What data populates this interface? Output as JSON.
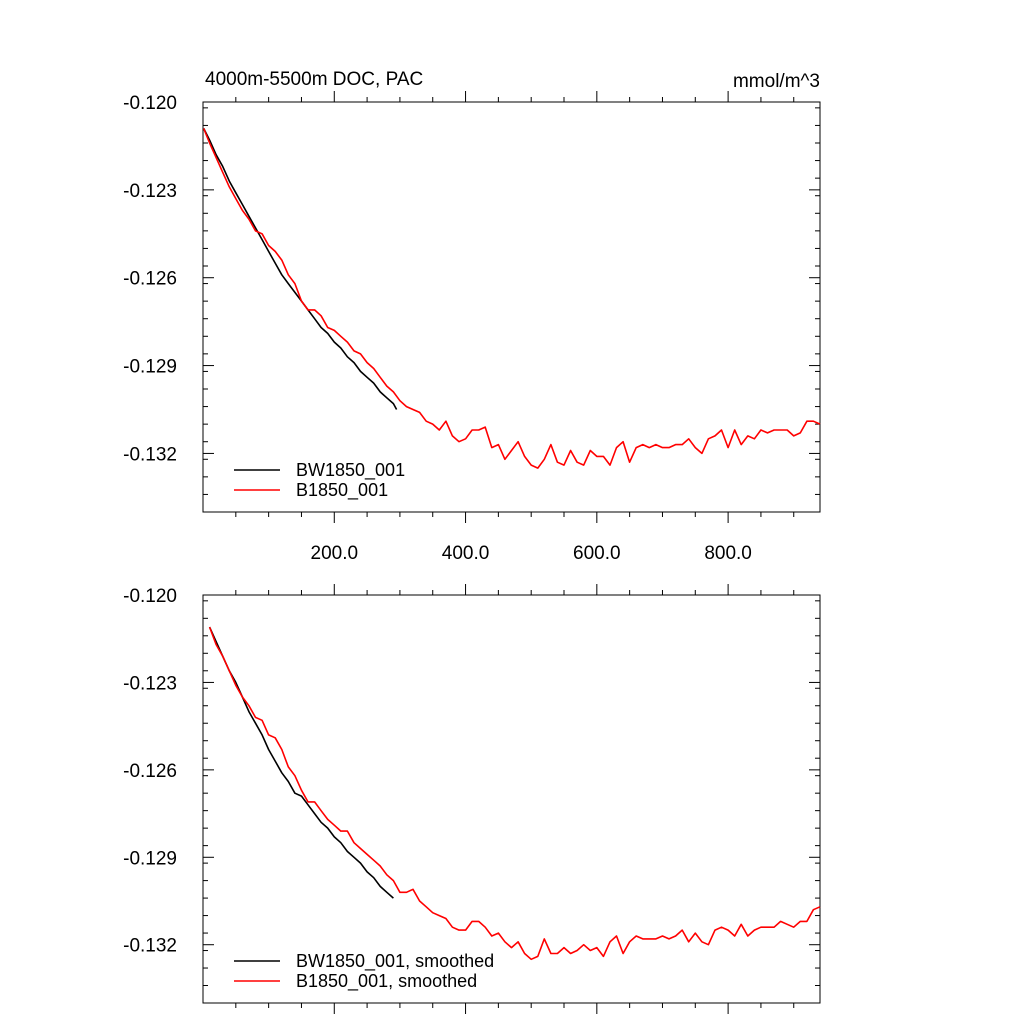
{
  "chart_data": [
    {
      "type": "line",
      "title_left": "4000m-5500m DOC, PAC",
      "title_right": "mmol/m^3",
      "xlim": [
        0,
        940
      ],
      "ylim": [
        -0.134,
        -0.12
      ],
      "yticks": [
        -0.12,
        -0.123,
        -0.126,
        -0.129,
        -0.132
      ],
      "ytick_labels": [
        "-0.120",
        "-0.123",
        "-0.126",
        "-0.129",
        "-0.132"
      ],
      "xticks": [
        200,
        400,
        600,
        800
      ],
      "xtick_labels": [
        "200.0",
        "400.0",
        "600.0",
        "800.0"
      ],
      "grid": false,
      "legend_position": "bottom-left",
      "series": [
        {
          "name": "BW1850_001",
          "color": "#000000",
          "x": [
            1,
            10,
            20,
            30,
            40,
            50,
            60,
            70,
            80,
            90,
            100,
            110,
            120,
            130,
            140,
            150,
            160,
            170,
            180,
            190,
            200,
            210,
            220,
            230,
            240,
            250,
            260,
            270,
            280,
            290,
            295
          ],
          "y": [
            -0.1209,
            -0.1213,
            -0.1218,
            -0.1222,
            -0.1227,
            -0.1231,
            -0.1235,
            -0.1239,
            -0.1243,
            -0.1247,
            -0.1251,
            -0.1255,
            -0.1259,
            -0.1262,
            -0.1265,
            -0.1268,
            -0.1271,
            -0.1274,
            -0.1277,
            -0.1279,
            -0.1282,
            -0.1284,
            -0.1287,
            -0.1289,
            -0.1292,
            -0.1294,
            -0.1296,
            -0.1299,
            -0.1301,
            -0.1303,
            -0.1305
          ]
        },
        {
          "name": "B1850_001",
          "color": "#ff0000",
          "x": [
            1,
            10,
            20,
            30,
            40,
            50,
            60,
            70,
            80,
            90,
            100,
            110,
            120,
            130,
            140,
            150,
            160,
            170,
            180,
            190,
            200,
            210,
            220,
            230,
            240,
            250,
            260,
            270,
            280,
            290,
            300,
            310,
            320,
            330,
            340,
            350,
            360,
            370,
            380,
            390,
            400,
            410,
            420,
            430,
            440,
            450,
            460,
            470,
            480,
            490,
            500,
            510,
            520,
            530,
            540,
            550,
            560,
            570,
            580,
            590,
            600,
            610,
            620,
            630,
            640,
            650,
            660,
            670,
            680,
            690,
            700,
            710,
            720,
            730,
            740,
            750,
            760,
            770,
            780,
            790,
            800,
            810,
            820,
            830,
            840,
            850,
            860,
            870,
            880,
            890,
            900,
            910,
            920,
            930,
            940
          ],
          "y": [
            -0.1209,
            -0.1214,
            -0.1219,
            -0.1224,
            -0.1229,
            -0.1233,
            -0.1237,
            -0.124,
            -0.1244,
            -0.1245,
            -0.1249,
            -0.1251,
            -0.1254,
            -0.1259,
            -0.1262,
            -0.1268,
            -0.1271,
            -0.1271,
            -0.1273,
            -0.1277,
            -0.1278,
            -0.128,
            -0.1282,
            -0.1285,
            -0.1286,
            -0.1289,
            -0.1291,
            -0.1294,
            -0.1297,
            -0.1299,
            -0.1302,
            -0.1304,
            -0.1305,
            -0.1306,
            -0.1309,
            -0.131,
            -0.1312,
            -0.1309,
            -0.1314,
            -0.1316,
            -0.1315,
            -0.1312,
            -0.1312,
            -0.1311,
            -0.1318,
            -0.1317,
            -0.1322,
            -0.1319,
            -0.1316,
            -0.1321,
            -0.1324,
            -0.1325,
            -0.1322,
            -0.1317,
            -0.1323,
            -0.1324,
            -0.1319,
            -0.1323,
            -0.1324,
            -0.1319,
            -0.1321,
            -0.1321,
            -0.1324,
            -0.1318,
            -0.1316,
            -0.1323,
            -0.1318,
            -0.1317,
            -0.1318,
            -0.1317,
            -0.1318,
            -0.1318,
            -0.1317,
            -0.1317,
            -0.1315,
            -0.1318,
            -0.132,
            -0.1315,
            -0.1314,
            -0.1312,
            -0.1318,
            -0.1312,
            -0.1317,
            -0.1314,
            -0.1315,
            -0.1312,
            -0.1313,
            -0.1312,
            -0.1312,
            -0.1312,
            -0.1314,
            -0.1313,
            -0.1309,
            -0.1309,
            -0.131
          ]
        }
      ]
    },
    {
      "type": "line",
      "title_left": "",
      "title_right": "",
      "xlim": [
        0,
        940
      ],
      "ylim": [
        -0.134,
        -0.12
      ],
      "yticks": [
        -0.12,
        -0.123,
        -0.126,
        -0.129,
        -0.132
      ],
      "ytick_labels": [
        "-0.120",
        "-0.123",
        "-0.126",
        "-0.129",
        "-0.132"
      ],
      "xticks": [
        200,
        400,
        600,
        800
      ],
      "xtick_labels": [],
      "grid": false,
      "legend_position": "bottom-left",
      "series": [
        {
          "name": "BW1850_001, smoothed",
          "color": "#000000",
          "x": [
            10,
            20,
            30,
            40,
            50,
            60,
            70,
            80,
            90,
            100,
            110,
            120,
            130,
            140,
            150,
            160,
            170,
            180,
            190,
            200,
            210,
            220,
            230,
            240,
            250,
            260,
            270,
            280,
            290
          ],
          "y": [
            -0.1211,
            -0.1216,
            -0.1221,
            -0.1226,
            -0.123,
            -0.1235,
            -0.124,
            -0.1244,
            -0.1248,
            -0.1253,
            -0.1257,
            -0.1261,
            -0.1264,
            -0.1268,
            -0.1269,
            -0.1272,
            -0.1275,
            -0.1278,
            -0.128,
            -0.1283,
            -0.1285,
            -0.1288,
            -0.129,
            -0.1292,
            -0.1295,
            -0.1297,
            -0.13,
            -0.1302,
            -0.1304
          ]
        },
        {
          "name": "B1850_001, smoothed",
          "color": "#ff0000",
          "x": [
            10,
            20,
            30,
            40,
            50,
            60,
            70,
            80,
            90,
            100,
            110,
            120,
            130,
            140,
            150,
            160,
            170,
            180,
            190,
            200,
            210,
            220,
            230,
            240,
            250,
            260,
            270,
            280,
            290,
            300,
            310,
            320,
            330,
            340,
            350,
            360,
            370,
            380,
            390,
            400,
            410,
            420,
            430,
            440,
            450,
            460,
            470,
            480,
            490,
            500,
            510,
            520,
            530,
            540,
            550,
            560,
            570,
            580,
            590,
            600,
            610,
            620,
            630,
            640,
            650,
            660,
            670,
            680,
            690,
            700,
            710,
            720,
            730,
            740,
            750,
            760,
            770,
            780,
            790,
            800,
            810,
            820,
            830,
            840,
            850,
            860,
            870,
            880,
            890,
            900,
            910,
            920,
            930,
            940
          ],
          "y": [
            -0.1211,
            -0.1217,
            -0.1221,
            -0.1226,
            -0.1231,
            -0.1235,
            -0.1238,
            -0.1242,
            -0.1243,
            -0.1248,
            -0.1249,
            -0.1253,
            -0.1259,
            -0.1262,
            -0.1267,
            -0.1271,
            -0.1271,
            -0.1274,
            -0.1277,
            -0.1279,
            -0.1281,
            -0.1281,
            -0.1285,
            -0.1287,
            -0.1289,
            -0.1291,
            -0.1293,
            -0.1296,
            -0.1298,
            -0.1302,
            -0.1302,
            -0.1301,
            -0.1305,
            -0.1307,
            -0.1309,
            -0.131,
            -0.1311,
            -0.1314,
            -0.1315,
            -0.1315,
            -0.1312,
            -0.1312,
            -0.1314,
            -0.1317,
            -0.1316,
            -0.1319,
            -0.1321,
            -0.1319,
            -0.1323,
            -0.1325,
            -0.1324,
            -0.1318,
            -0.1323,
            -0.1323,
            -0.1321,
            -0.1323,
            -0.1322,
            -0.132,
            -0.1322,
            -0.1321,
            -0.1324,
            -0.1319,
            -0.1317,
            -0.1323,
            -0.1319,
            -0.1317,
            -0.1318,
            -0.1318,
            -0.1318,
            -0.1317,
            -0.1318,
            -0.1317,
            -0.1315,
            -0.1319,
            -0.1316,
            -0.1319,
            -0.132,
            -0.1315,
            -0.1314,
            -0.1315,
            -0.1317,
            -0.1313,
            -0.1317,
            -0.1315,
            -0.1314,
            -0.1314,
            -0.1314,
            -0.1312,
            -0.1313,
            -0.1314,
            -0.1312,
            -0.1312,
            -0.1308,
            -0.1307
          ]
        }
      ]
    }
  ]
}
